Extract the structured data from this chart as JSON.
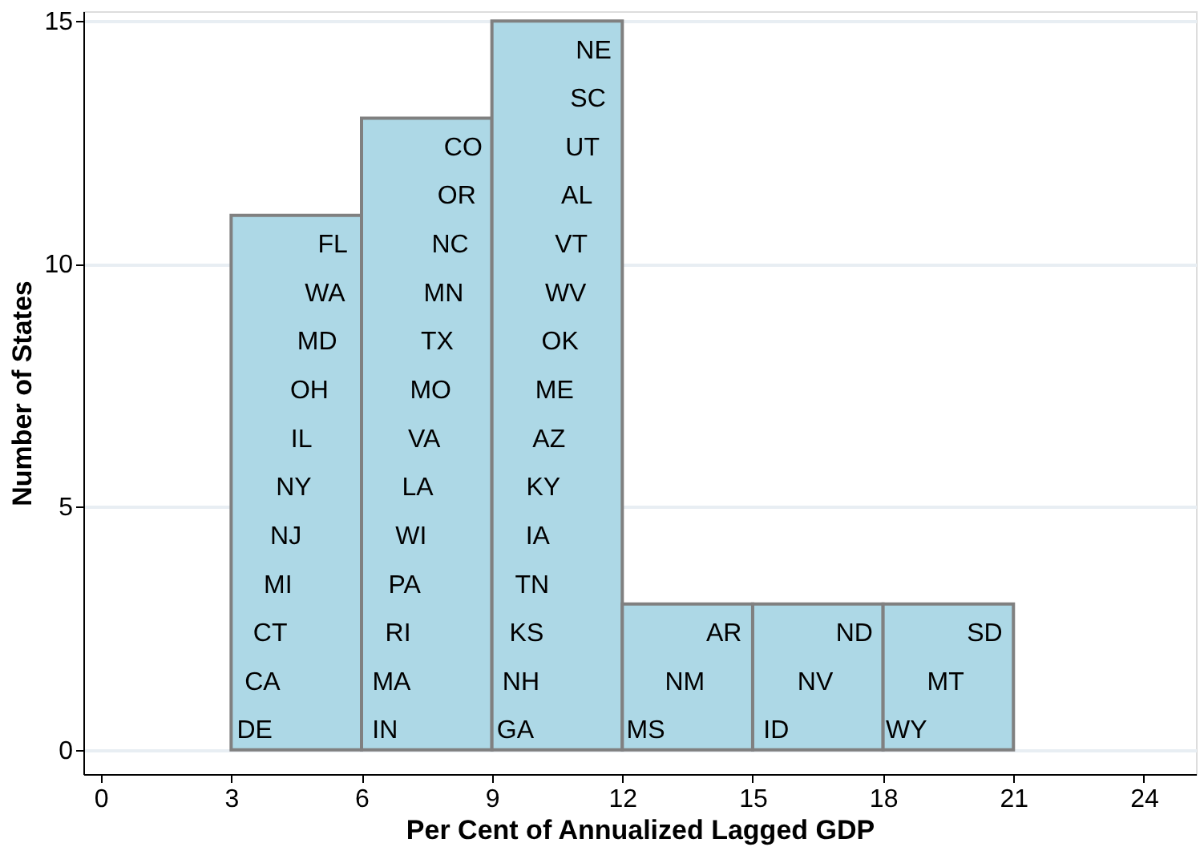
{
  "chart_data": {
    "type": "histogram",
    "xlabel": "Per Cent of Annualized Lagged GDP",
    "ylabel": "Number of States",
    "bins": [
      3,
      6,
      9,
      12,
      15,
      18,
      21
    ],
    "values": [
      11,
      13,
      15,
      3,
      3,
      3
    ],
    "color": "#add8e6",
    "xlim": [
      -0.4,
      25.2
    ],
    "ylim": [
      -0.5,
      15.2
    ],
    "xticks": [
      0,
      3,
      6,
      9,
      12,
      15,
      18,
      21,
      24
    ],
    "yticks": [
      0,
      5,
      10,
      15
    ],
    "grid": "y",
    "annotations": [
      "DE",
      "CA",
      "CT",
      "MI",
      "NJ",
      "NY",
      "IL",
      "OH",
      "MD",
      "WA",
      "FL",
      "IN",
      "MA",
      "RI",
      "PA",
      "WI",
      "LA",
      "VA",
      "MO",
      "TX",
      "MN",
      "NC",
      "OR",
      "CO",
      "GA",
      "NH",
      "KS",
      "TN",
      "IA",
      "KY",
      "AZ",
      "ME",
      "OK",
      "WV",
      "VT",
      "AL",
      "UT",
      "SC",
      "NE",
      "MS",
      "NM",
      "AR",
      "ID",
      "NV",
      "ND",
      "WY",
      "MT",
      "SD"
    ]
  }
}
